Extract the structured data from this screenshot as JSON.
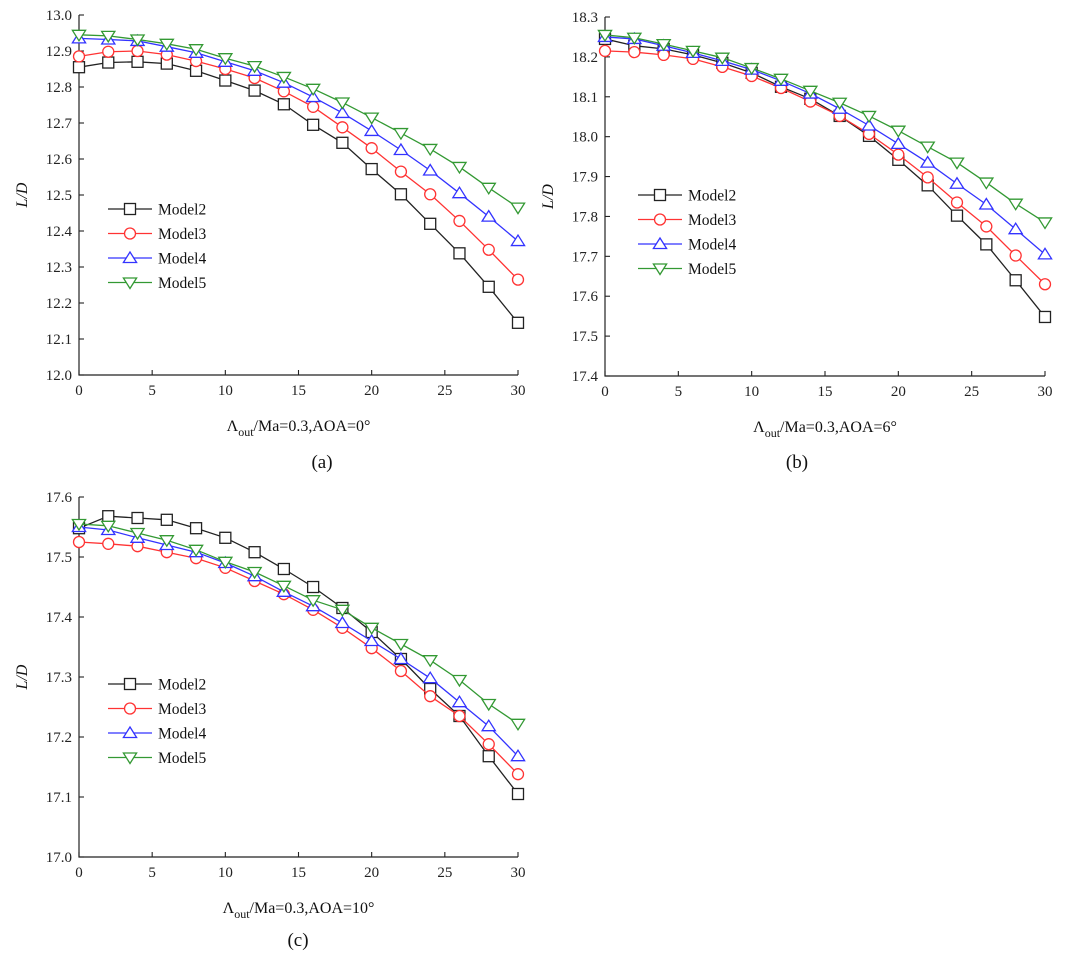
{
  "chart_data": [
    {
      "id": "a",
      "type": "line",
      "caption": "(a)",
      "xlabel": "Λout/Ma=0.3,AOA=0°",
      "xlabel_parts": {
        "pre": "Λ",
        "sub": "out",
        "post": "/Ma=0.3,AOA=0°"
      },
      "ylabel": "L/D",
      "xlim": [
        0,
        30
      ],
      "ylim": [
        12.0,
        13.0
      ],
      "xticks": [
        0,
        5,
        10,
        15,
        20,
        25,
        30
      ],
      "yticks": [
        "12.0",
        "12.1",
        "12.2",
        "12.3",
        "12.4",
        "12.5",
        "12.6",
        "12.7",
        "12.8",
        "12.9",
        "13.0"
      ],
      "legend_position": "center-left",
      "x": [
        0,
        2,
        4,
        6,
        8,
        10,
        12,
        14,
        16,
        18,
        20,
        22,
        24,
        26,
        28,
        30
      ],
      "series": [
        {
          "name": "Model2",
          "color": "#222222",
          "marker": "square",
          "values": [
            12.855,
            12.868,
            12.87,
            12.865,
            12.845,
            12.818,
            12.79,
            12.752,
            12.695,
            12.645,
            12.572,
            12.502,
            12.42,
            12.338,
            12.245,
            12.145
          ]
        },
        {
          "name": "Model3",
          "color": "#ff3333",
          "marker": "circle",
          "values": [
            12.885,
            12.898,
            12.9,
            12.89,
            12.872,
            12.85,
            12.825,
            12.788,
            12.745,
            12.688,
            12.63,
            12.565,
            12.502,
            12.428,
            12.348,
            12.265
          ]
        },
        {
          "name": "Model4",
          "color": "#3333ff",
          "marker": "triangle-up",
          "values": [
            12.935,
            12.932,
            12.928,
            12.912,
            12.895,
            12.87,
            12.845,
            12.812,
            12.772,
            12.728,
            12.678,
            12.625,
            12.568,
            12.505,
            12.44,
            12.372
          ]
        },
        {
          "name": "Model5",
          "color": "#339933",
          "marker": "triangle-down",
          "values": [
            12.945,
            12.942,
            12.932,
            12.92,
            12.905,
            12.88,
            12.858,
            12.828,
            12.795,
            12.757,
            12.715,
            12.672,
            12.628,
            12.578,
            12.52,
            12.465
          ]
        }
      ]
    },
    {
      "id": "b",
      "type": "line",
      "caption": "(b)",
      "xlabel": "Λout/Ma=0.3,AOA=6°",
      "xlabel_parts": {
        "pre": "Λ",
        "sub": "out",
        "post": "/Ma=0.3,AOA=6°"
      },
      "ylabel": "L/D",
      "xlim": [
        0,
        30
      ],
      "ylim": [
        17.4,
        18.3
      ],
      "xticks": [
        0,
        5,
        10,
        15,
        20,
        25,
        30
      ],
      "yticks": [
        "17.4",
        "17.5",
        "17.6",
        "17.7",
        "17.8",
        "17.9",
        "18.0",
        "18.1",
        "18.2",
        "18.3"
      ],
      "legend_position": "center-left",
      "x": [
        0,
        2,
        4,
        6,
        8,
        10,
        12,
        14,
        16,
        18,
        20,
        22,
        24,
        26,
        28,
        30
      ],
      "series": [
        {
          "name": "Model2",
          "color": "#222222",
          "marker": "square",
          "values": [
            18.245,
            18.228,
            18.22,
            18.205,
            18.185,
            18.16,
            18.125,
            18.095,
            18.052,
            18.002,
            17.942,
            17.878,
            17.802,
            17.73,
            17.64,
            17.548
          ]
        },
        {
          "name": "Model3",
          "color": "#ff3333",
          "marker": "circle",
          "values": [
            18.215,
            18.212,
            18.205,
            18.195,
            18.175,
            18.152,
            18.122,
            18.088,
            18.052,
            18.007,
            17.955,
            17.898,
            17.835,
            17.775,
            17.702,
            17.63
          ]
        },
        {
          "name": "Model4",
          "color": "#3333ff",
          "marker": "triangle-up",
          "values": [
            18.25,
            18.245,
            18.228,
            18.21,
            18.19,
            18.168,
            18.14,
            18.108,
            18.07,
            18.028,
            17.982,
            17.935,
            17.882,
            17.83,
            17.768,
            17.705
          ]
        },
        {
          "name": "Model5",
          "color": "#339933",
          "marker": "triangle-down",
          "values": [
            18.255,
            18.248,
            18.232,
            18.215,
            18.198,
            18.172,
            18.145,
            18.115,
            18.085,
            18.052,
            18.015,
            17.975,
            17.935,
            17.885,
            17.832,
            17.785
          ]
        }
      ]
    },
    {
      "id": "c",
      "type": "line",
      "caption": "(c)",
      "xlabel": "Λout/Ma=0.3,AOA=10°",
      "xlabel_parts": {
        "pre": "Λ",
        "sub": "out",
        "post": "/Ma=0.3,AOA=10°"
      },
      "ylabel": "L/D",
      "xlim": [
        0,
        30
      ],
      "ylim": [
        17.0,
        17.6
      ],
      "xticks": [
        0,
        5,
        10,
        15,
        20,
        25,
        30
      ],
      "yticks": [
        "17.0",
        "17.1",
        "17.2",
        "17.3",
        "17.4",
        "17.5",
        "17.6"
      ],
      "legend_position": "center-left",
      "x": [
        0,
        2,
        4,
        6,
        8,
        10,
        12,
        14,
        16,
        18,
        20,
        22,
        24,
        26,
        28,
        30
      ],
      "series": [
        {
          "name": "Model2",
          "color": "#222222",
          "marker": "square",
          "values": [
            17.548,
            17.568,
            17.565,
            17.562,
            17.548,
            17.532,
            17.508,
            17.48,
            17.45,
            17.415,
            17.375,
            17.33,
            17.28,
            17.235,
            17.168,
            17.105
          ]
        },
        {
          "name": "Model3",
          "color": "#ff3333",
          "marker": "circle",
          "values": [
            17.525,
            17.522,
            17.518,
            17.508,
            17.498,
            17.482,
            17.46,
            17.438,
            17.412,
            17.382,
            17.348,
            17.31,
            17.268,
            17.235,
            17.188,
            17.138
          ]
        },
        {
          "name": "Model4",
          "color": "#3333ff",
          "marker": "triangle-up",
          "values": [
            17.55,
            17.545,
            17.532,
            17.52,
            17.508,
            17.49,
            17.468,
            17.442,
            17.418,
            17.39,
            17.36,
            17.33,
            17.298,
            17.258,
            17.218,
            17.168
          ]
        },
        {
          "name": "Model5",
          "color": "#339933",
          "marker": "triangle-down",
          "values": [
            17.555,
            17.552,
            17.54,
            17.528,
            17.512,
            17.492,
            17.475,
            17.452,
            17.428,
            17.412,
            17.382,
            17.355,
            17.328,
            17.295,
            17.255,
            17.222
          ]
        }
      ]
    }
  ]
}
